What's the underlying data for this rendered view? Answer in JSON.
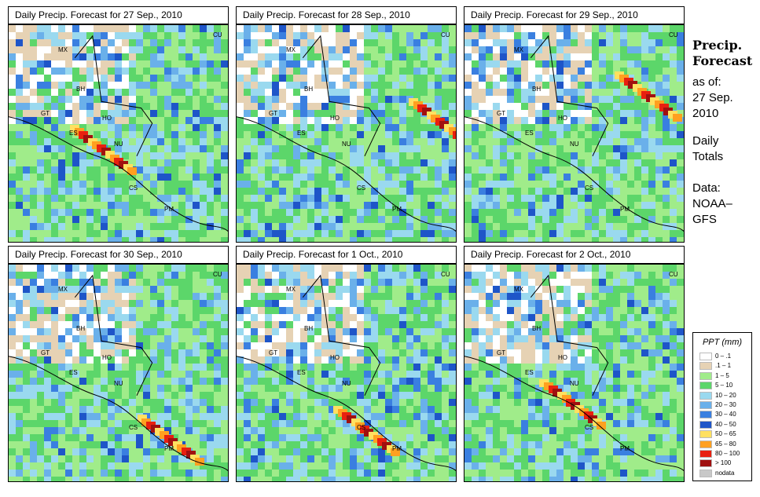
{
  "panels": [
    {
      "title": "Daily Precip. Forecast for  27 Sep., 2010",
      "seed": 27
    },
    {
      "title": "Daily Precip. Forecast for  28 Sep., 2010",
      "seed": 28
    },
    {
      "title": "Daily Precip. Forecast for  29 Sep., 2010",
      "seed": 29
    },
    {
      "title": "Daily Precip. Forecast for  30 Sep., 2010",
      "seed": 30
    },
    {
      "title": "Daily Precip. Forecast for  1 Oct., 2010",
      "seed": 1
    },
    {
      "title": "Daily Precip. Forecast for  2 Oct., 2010",
      "seed": 2
    }
  ],
  "country_labels": [
    "MX",
    "BH",
    "GT",
    "HO",
    "ES",
    "NU",
    "CS",
    "PM",
    "CU"
  ],
  "sidebar": {
    "title_line1": "Precip.",
    "title_line2": "Forecast",
    "asof_line1": "as of:",
    "asof_line2": "27 Sep.",
    "asof_line3": "2010",
    "daily_line1": "Daily",
    "daily_line2": "Totals",
    "data_line1": "Data:",
    "data_line2": "NOAA–",
    "data_line3": "GFS"
  },
  "legend": {
    "title": "PPT (mm)",
    "items": [
      {
        "label": "0 – .1",
        "color": "#ffffff"
      },
      {
        "label": ".1 – 1",
        "color": "#e6d2b4"
      },
      {
        "label": "1 – 5",
        "color": "#a0ec8a"
      },
      {
        "label": "5 – 10",
        "color": "#5cd66a"
      },
      {
        "label": "10 – 20",
        "color": "#9ad9ef"
      },
      {
        "label": "20 – 30",
        "color": "#6ab0ea"
      },
      {
        "label": "30 – 40",
        "color": "#3a7fe0"
      },
      {
        "label": "40 – 50",
        "color": "#1e55c8"
      },
      {
        "label": "50 – 65",
        "color": "#ffe060"
      },
      {
        "label": "65 – 80",
        "color": "#ffa020"
      },
      {
        "label": "80 – 100",
        "color": "#e82010"
      },
      {
        "label": "> 100",
        "color": "#a01010"
      },
      {
        "label": "nodata",
        "color": "#c8c8c8"
      }
    ]
  }
}
